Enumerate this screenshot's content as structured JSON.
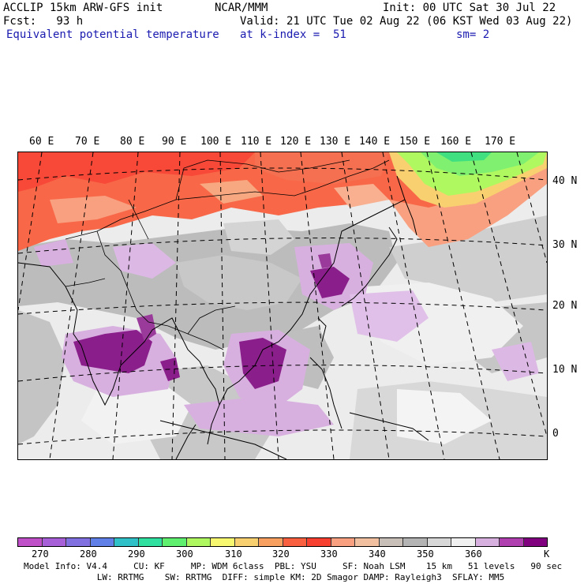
{
  "header": {
    "line1_left": "ACCLIP 15km ARW-GFS init",
    "line1_center": "NCAR/MMM",
    "line1_right": "Init: 00 UTC Sat 30 Jul 22",
    "line2_left": "Fcst:   93 h",
    "line2_right": "Valid: 21 UTC Tue 02 Aug 22 (06 KST Wed 03 Aug 22)",
    "line3_left": "Equivalent potential temperature",
    "line3_center": "at k-index =  51",
    "line3_right": "sm= 2"
  },
  "map": {
    "lon_labels": [
      "60 E",
      "70 E",
      "80 E",
      "90 E",
      "100 E",
      "110 E",
      "120 E",
      "130 E",
      "140 E",
      "150 E",
      "160 E",
      "170 E"
    ],
    "lat_labels": [
      "40 N",
      "30 N",
      "20 N",
      "10 N",
      "0"
    ]
  },
  "colorbar": {
    "colors": [
      "#c050c8",
      "#a860d8",
      "#8070e0",
      "#6080e8",
      "#30c0c8",
      "#30e0a0",
      "#60f070",
      "#b0f860",
      "#f8f870",
      "#f8d070",
      "#f8a060",
      "#f86040",
      "#f84030",
      "#f8a080",
      "#f0c0a0",
      "#c8c0b8",
      "#b4b4b4",
      "#d8d8d8",
      "#f0f0f0",
      "#d8b0e0",
      "#b040b0",
      "#800080"
    ],
    "labels": [
      "270",
      "280",
      "290",
      "300",
      "310",
      "320",
      "330",
      "340",
      "350",
      "360"
    ],
    "unit": "K"
  },
  "model_info": {
    "line1": "Model Info: V4.4     CU: KF     MP: WDM 6class  PBL: YSU     SF: Noah LSM    15 km   51 levels   90 sec",
    "line2": "              LW: RRTMG    SW: RRTMG  DIFF: simple KM: 2D Smagor DAMP: Rayleigh3  SFLAY: MM5"
  }
}
